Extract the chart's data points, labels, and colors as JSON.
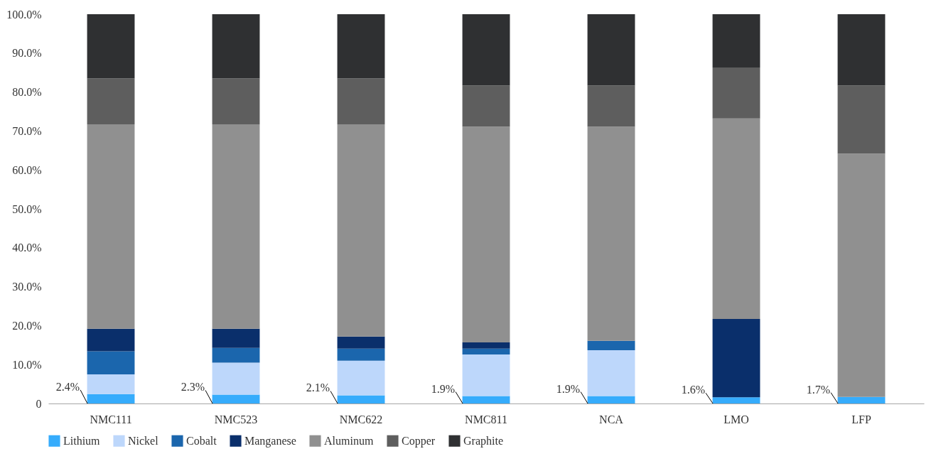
{
  "chart_data": {
    "type": "bar",
    "stacked": true,
    "categories": [
      "NMC111",
      "NMC523",
      "NMC622",
      "NMC811",
      "NCA",
      "LMO",
      "LFP"
    ],
    "ylim": [
      0,
      100
    ],
    "yticks": [
      {
        "value": 0,
        "label": "0"
      },
      {
        "value": 10,
        "label": "10.0%"
      },
      {
        "value": 20,
        "label": "20.0%"
      },
      {
        "value": 30,
        "label": "30.0%"
      },
      {
        "value": 40,
        "label": "40.0%"
      },
      {
        "value": 50,
        "label": "50.0%"
      },
      {
        "value": 60,
        "label": "60.0%"
      },
      {
        "value": 70,
        "label": "70.0%"
      },
      {
        "value": 80,
        "label": "80.0%"
      },
      {
        "value": 90,
        "label": "90.0%"
      },
      {
        "value": 100,
        "label": "100.0%"
      }
    ],
    "grid": false,
    "legend": "bottom",
    "series": [
      {
        "name": "Lithium",
        "color": "#36acfc",
        "values": [
          2.4,
          2.3,
          2.1,
          1.9,
          1.9,
          1.6,
          1.7
        ],
        "value_labels": [
          "2.4%",
          "2.3%",
          "2.1%",
          "1.9%",
          "1.9%",
          "1.6%",
          "1.7%"
        ]
      },
      {
        "name": "Nickel",
        "color": "#bdd7fb",
        "values": [
          5.1,
          8.2,
          8.9,
          10.7,
          11.8,
          0,
          0
        ]
      },
      {
        "name": "Cobalt",
        "color": "#1b66ad",
        "values": [
          5.9,
          3.8,
          3.1,
          1.5,
          2.4,
          0,
          0
        ]
      },
      {
        "name": "Manganese",
        "color": "#0a2f6b",
        "values": [
          5.8,
          4.9,
          3.1,
          1.6,
          0,
          20.1,
          0
        ]
      },
      {
        "name": "Aluminum",
        "color": "#909090",
        "values": [
          52.5,
          52.5,
          54.5,
          55.4,
          55.0,
          51.5,
          62.5
        ]
      },
      {
        "name": "Copper",
        "color": "#5e5e5e",
        "values": [
          11.8,
          11.8,
          11.8,
          10.6,
          10.6,
          13.1,
          17.5
        ]
      },
      {
        "name": "Graphite",
        "color": "#2f3032",
        "values": [
          16.5,
          16.5,
          16.5,
          18.3,
          18.3,
          13.7,
          18.3
        ]
      }
    ]
  }
}
